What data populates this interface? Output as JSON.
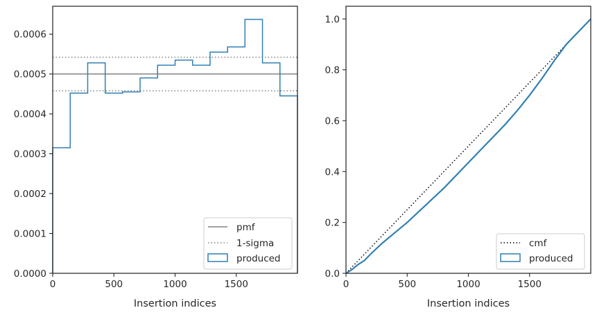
{
  "chart_data": [
    {
      "type": "histogram",
      "xlabel": "Insertion indices",
      "ylabel": "",
      "xlim": [
        0,
        2000
      ],
      "ylim": [
        0,
        0.00067
      ],
      "xticks": [
        0,
        500,
        1000,
        1500
      ],
      "xtick_labels": [
        "0",
        "500",
        "1000",
        "1500"
      ],
      "yticks": [
        0,
        0.0001,
        0.0002,
        0.0003,
        0.0004,
        0.0005,
        0.0006
      ],
      "ytick_labels": [
        "0.0000",
        "0.0001",
        "0.0002",
        "0.0003",
        "0.0004",
        "0.0005",
        "0.0006"
      ],
      "bin_edges": [
        0,
        143,
        286,
        429,
        571,
        714,
        857,
        1000,
        1143,
        1286,
        1429,
        1571,
        1714,
        1857,
        2000
      ],
      "values": [
        0.000315,
        0.000452,
        0.000528,
        0.000452,
        0.000455,
        0.00049,
        0.000522,
        0.000535,
        0.000522,
        0.000555,
        0.000568,
        0.000637,
        0.000528,
        0.000445
      ],
      "pmf": 0.0005,
      "sigma_lower": 0.000458,
      "sigma_upper": 0.000542,
      "legend": [
        "pmf",
        "1-sigma",
        "produced"
      ],
      "legend_position": "lower right",
      "colors": {
        "produced": "#2f7fb3",
        "pmf": "#808080",
        "sigma": "#808080"
      }
    },
    {
      "type": "line",
      "xlabel": "Insertion indices",
      "ylabel": "",
      "xlim": [
        0,
        2000
      ],
      "ylim": [
        0,
        1.05
      ],
      "xticks": [
        0,
        500,
        1000,
        1500
      ],
      "xtick_labels": [
        "0",
        "500",
        "1000",
        "1500"
      ],
      "yticks": [
        0,
        0.2,
        0.4,
        0.6,
        0.8,
        1.0
      ],
      "ytick_labels": [
        "0.0",
        "0.2",
        "0.4",
        "0.6",
        "0.8",
        "1.0"
      ],
      "series": [
        {
          "name": "cmf",
          "style": "dotted",
          "color": "#000000",
          "x": [
            0,
            2000
          ],
          "y": [
            0,
            1.0
          ]
        },
        {
          "name": "produced",
          "style": "solid",
          "color": "#2f7fb3",
          "x": [
            0,
            50,
            100,
            150,
            200,
            300,
            400,
            500,
            600,
            700,
            800,
            900,
            1000,
            1100,
            1200,
            1300,
            1400,
            1500,
            1600,
            1700,
            1800,
            1900,
            2000
          ],
          "y": [
            0,
            0.015,
            0.035,
            0.05,
            0.075,
            0.12,
            0.16,
            0.2,
            0.245,
            0.29,
            0.335,
            0.385,
            0.435,
            0.485,
            0.535,
            0.585,
            0.64,
            0.7,
            0.765,
            0.835,
            0.9,
            0.95,
            1.0
          ]
        }
      ],
      "legend": [
        "cmf",
        "produced"
      ],
      "legend_position": "lower right"
    }
  ]
}
